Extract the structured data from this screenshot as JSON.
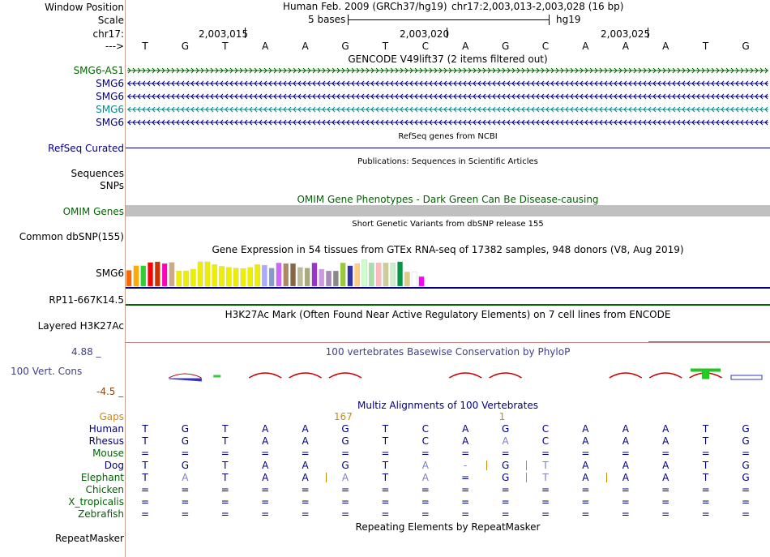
{
  "colors": {
    "navy": "#000080",
    "green": "#006400",
    "teal": "#008b8b",
    "gap_orange": "#d08a00",
    "light_blue_base": "#7f7fbf",
    "conservation_label": "#3f3f8f",
    "conservation_red": "#cc0000"
  },
  "ruler": {
    "window_position_label": "Window Position",
    "scale_label": "Scale",
    "chrom_label": "chr17:",
    "strand_label": "--->",
    "assembly_text": "Human Feb. 2009 (GRCh37/hg19)",
    "position_text": "chr17:2,003,013-2,003,028 (16 bp)",
    "scale_text": "5 bases",
    "db_text": "hg19",
    "positions": [
      "2,003,015",
      "2,003,020",
      "2,003,025"
    ],
    "bases": [
      "T",
      "G",
      "T",
      "A",
      "A",
      "G",
      "T",
      "C",
      "A",
      "G",
      "C",
      "A",
      "A",
      "A",
      "T",
      "G"
    ]
  },
  "gencode": {
    "title": "GENCODE V49lift37 (2 items filtered out)",
    "genes": [
      {
        "name": "SMG6-AS1",
        "strand": "+",
        "color": "#006400"
      },
      {
        "name": "SMG6",
        "strand": "-",
        "color": "#000080"
      },
      {
        "name": "SMG6",
        "strand": "-",
        "color": "#000080"
      },
      {
        "name": "SMG6",
        "strand": "-",
        "color": "#008b8b"
      },
      {
        "name": "SMG6",
        "strand": "-",
        "color": "#000080"
      }
    ]
  },
  "refseq": {
    "title": "RefSeq genes from NCBI",
    "label": "RefSeq Curated"
  },
  "publications": {
    "title": "Publications: Sequences in Scientific Articles",
    "labels": [
      "Sequences",
      "SNPs"
    ]
  },
  "omim": {
    "title": "OMIM Gene Phenotypes - Dark Green Can Be Disease-causing",
    "label": "OMIM Genes"
  },
  "dbsnp": {
    "title": "Short Genetic Variants from dbSNP release 155",
    "label": "Common dbSNP(155)"
  },
  "gtex": {
    "title": "Gene Expression in 54 tissues from GTEx RNA-seq of 17382 samples, 948 donors (V8, Aug 2019)",
    "label": "SMG6",
    "label2": "RP11-667K14.5",
    "bar_colors": [
      "#ff6600",
      "#ffaa00",
      "#33cc33",
      "#ff0000",
      "#cc3300",
      "#ff00bb",
      "#ccaa88",
      "#eeee00",
      "#eeee00",
      "#eeee00",
      "#eeee00",
      "#eeee00",
      "#eeee00",
      "#eeee00",
      "#eeee00",
      "#eeee00",
      "#eeee00",
      "#eeee00",
      "#eeee00",
      "#aaaaff",
      "#8899cc",
      "#cc66ff",
      "#aa8866",
      "#886644",
      "#bbbb99",
      "#aaaa77",
      "#9933cc",
      "#cc99dd",
      "#aa88bb",
      "#888888",
      "#99cc33",
      "#3333aa",
      "#ffcc88",
      "#ccffcc",
      "#aaddaa",
      "#ffbbbb",
      "#cccc99",
      "#cceecc",
      "#009944",
      "#ddcc88",
      "#ffffff",
      "#ff00ff"
    ],
    "bar_values": [
      0.56,
      0.72,
      0.72,
      0.84,
      0.86,
      0.8,
      0.84,
      0.54,
      0.54,
      0.6,
      0.86,
      0.86,
      0.76,
      0.7,
      0.66,
      0.64,
      0.62,
      0.66,
      0.76,
      0.74,
      0.64,
      0.82,
      0.8,
      0.8,
      0.66,
      0.64,
      0.82,
      0.6,
      0.54,
      0.54,
      0.82,
      0.72,
      0.8,
      0.94,
      0.82,
      0.82,
      0.82,
      0.82,
      0.86,
      0.5,
      0.5,
      0.34
    ]
  },
  "h3k27ac": {
    "title": "H3K27Ac Mark (Often Found Near Active Regulatory Elements) on 7 cell lines from ENCODE",
    "label": "Layered H3K27Ac"
  },
  "conservation": {
    "title": "100 vertebrates Basewise Conservation by PhyloP",
    "label": "100 Vert. Cons",
    "max_label": "4.88 _",
    "min_label": "-4.5 _"
  },
  "multiz": {
    "title": "Multiz Alignments of 100 Vertebrates",
    "gaps_label": "Gaps",
    "gap_counts": [
      {
        "text": "167",
        "after_base": 5
      },
      {
        "text": "1",
        "after_base": 9
      }
    ],
    "species": [
      {
        "name": "Human",
        "color": "#000080",
        "seq": "TGTAAGTCAGCAAATG",
        "dim": [],
        "gaps": []
      },
      {
        "name": "Rhesus",
        "color": "#000080",
        "seq": "TGTAAGTCAACAAATG",
        "dim": [
          9
        ],
        "gaps": []
      },
      {
        "name": "Mouse",
        "color": "#006400",
        "seq": "================",
        "dim": [],
        "gaps": []
      },
      {
        "name": "Dog",
        "color": "#000080",
        "seq": "TGTAAGTA-GTAAATG",
        "dim": [
          7,
          8,
          10
        ],
        "gaps": [
          9,
          10
        ]
      },
      {
        "name": "Elephant",
        "color": "#006400",
        "seq": "TATAAATA=GTAAATG",
        "dim": [
          1,
          5,
          7,
          10
        ],
        "gaps": [
          5,
          10,
          12
        ]
      },
      {
        "name": "Chicken",
        "color": "#006400",
        "seq": "================",
        "dim": [],
        "gaps": []
      },
      {
        "name": "X_tropicalis",
        "color": "#006400",
        "seq": "================",
        "dim": [],
        "gaps": []
      },
      {
        "name": "Zebrafish",
        "color": "#006400",
        "seq": "================",
        "dim": [],
        "gaps": []
      }
    ]
  },
  "repeatmasker": {
    "title": "Repeating Elements by RepeatMasker",
    "label": "RepeatMasker"
  }
}
